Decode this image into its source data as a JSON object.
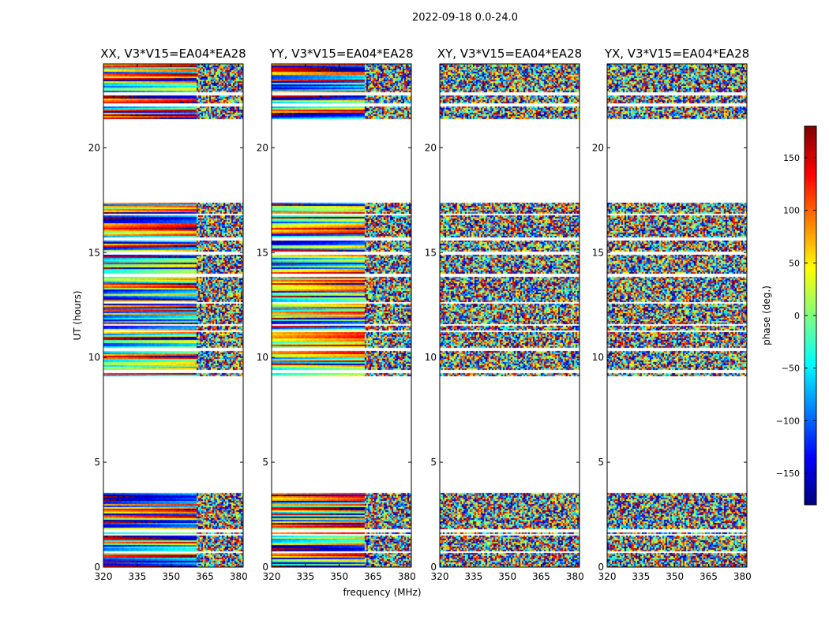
{
  "figure": {
    "suptitle": "2022-09-18 0.0-24.0"
  },
  "chart_data": {
    "type": "heatmap",
    "title": "2022-09-18 0.0-24.0",
    "xlabel": "frequency (MHz)",
    "ylabel": "UT (hours)",
    "xlim": [
      320,
      382
    ],
    "ylim": [
      0,
      24
    ],
    "xticks": [
      320,
      335,
      350,
      365,
      380
    ],
    "yticks": [
      0,
      5,
      10,
      15,
      20
    ],
    "panels": [
      {
        "title": "XX, V3*V15=EA04*EA28",
        "polarization": "XX",
        "coherent_band_mhz": [
          320,
          361
        ]
      },
      {
        "title": "YY, V3*V15=EA04*EA28",
        "polarization": "YY",
        "coherent_band_mhz": [
          320,
          361
        ]
      },
      {
        "title": "XY, V3*V15=EA04*EA28",
        "polarization": "XY",
        "coherent_band_mhz": null
      },
      {
        "title": "YX, V3*V15=EA04*EA28",
        "polarization": "YX",
        "coherent_band_mhz": null
      }
    ],
    "data_ut_ranges": [
      [
        0.0,
        3.5
      ],
      [
        9.1,
        17.4
      ],
      [
        21.4,
        24.0
      ]
    ],
    "gap_ut": [
      1.55,
      1.75,
      0.72,
      9.35,
      10.4,
      11.25,
      11.55,
      12.6,
      13.9,
      14.95,
      15.65,
      16.8,
      22.05,
      22.55
    ],
    "colorbar": {
      "label": "phase (deg.)",
      "range": [
        -180,
        180
      ],
      "ticks": [
        150,
        100,
        50,
        0,
        -50,
        -100,
        -150
      ],
      "tick_labels": [
        "150",
        "100",
        "50",
        "0",
        "−50",
        "−100",
        "−150"
      ],
      "colormap": "jet"
    }
  }
}
